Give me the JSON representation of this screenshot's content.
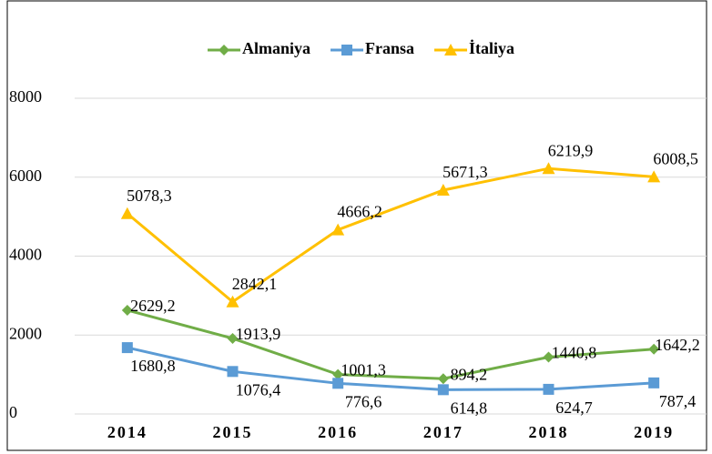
{
  "chart_data": {
    "type": "line",
    "categories": [
      "2014",
      "2015",
      "2016",
      "2017",
      "2018",
      "2019"
    ],
    "series": [
      {
        "name": "Almaniya",
        "color": "#70ad47",
        "marker": "diamond",
        "values": [
          2629.2,
          1913.9,
          1001.3,
          894.2,
          1440.8,
          1642.2
        ],
        "value_labels": [
          "2629,2",
          "1913,9",
          "1001,3",
          "894,2",
          "1440,8",
          "1642,2"
        ]
      },
      {
        "name": "Fransa",
        "color": "#5b9bd5",
        "marker": "square",
        "values": [
          1680.8,
          1076.4,
          776.6,
          614.8,
          624.7,
          787.4
        ],
        "value_labels": [
          "1680,8",
          "1076,4",
          "776,6",
          "614,8",
          "624,7",
          "787,4"
        ]
      },
      {
        "name": "İtaliya",
        "color": "#ffc000",
        "marker": "triangle",
        "values": [
          5078.3,
          2842.1,
          4666.2,
          5671.3,
          6219.9,
          6008.5
        ],
        "value_labels": [
          "5078,3",
          "2842,1",
          "4666,2",
          "5671,3",
          "6219,9",
          "6008,5"
        ]
      }
    ],
    "ylim": [
      0,
      8000
    ],
    "yticks": [
      0,
      2000,
      4000,
      6000,
      8000
    ],
    "grid": true,
    "legend": "top"
  }
}
